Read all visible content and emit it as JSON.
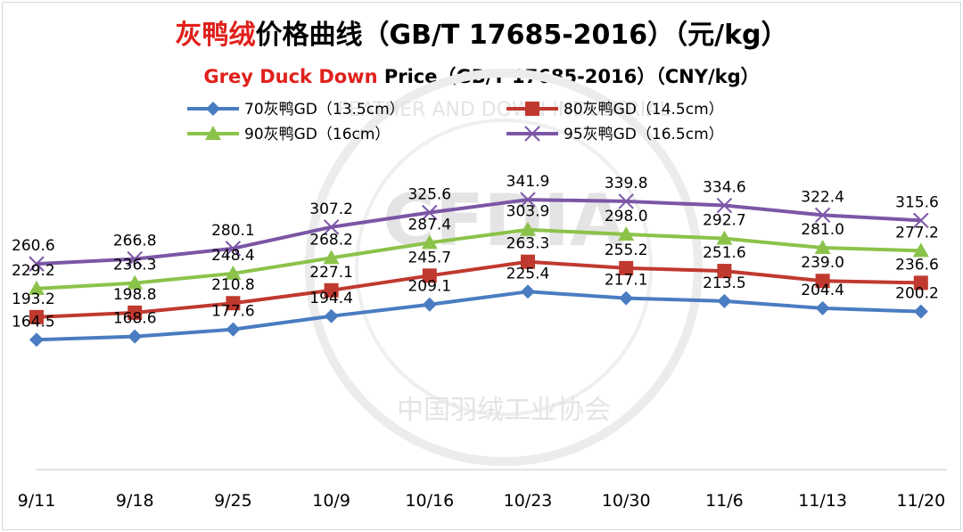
{
  "title": {
    "cn_red": "灰鸭绒",
    "cn_rest": "价格曲线（GB/T 17685-2016）（元/kg）",
    "en_red": "Grey Duck Down",
    "en_rest": " Price（GB/T 17685-2016）（CNY/kg）"
  },
  "watermark": {
    "text_cn": "中国羽绒工业协会",
    "text_en": "FEATHER AND DOWN INDUSTRIAL",
    "logo": "CFDIA"
  },
  "chart_data": {
    "type": "line",
    "categories": [
      "9/11",
      "9/18",
      "9/25",
      "10/9",
      "10/16",
      "10/23",
      "10/30",
      "11/6",
      "11/13",
      "11/20"
    ],
    "ylim": [
      0,
      400
    ],
    "grid": false,
    "legend_position": "top",
    "series": [
      {
        "name": "70灰鸭GD（13.5cm）",
        "color": "#4a7cc1",
        "marker": "diamond",
        "values": [
          164.5,
          168.6,
          177.6,
          194.4,
          209.1,
          225.4,
          217.1,
          213.5,
          204.4,
          200.2
        ]
      },
      {
        "name": "80灰鸭GD（14.5cm）",
        "color": "#c0392f",
        "marker": "square",
        "values": [
          193.2,
          198.8,
          210.8,
          227.1,
          245.7,
          263.3,
          255.2,
          251.6,
          239.0,
          236.6
        ]
      },
      {
        "name": "90灰鸭GD（16cm）",
        "color": "#8bc34a",
        "marker": "triangle",
        "values": [
          229.2,
          236.3,
          248.4,
          268.2,
          287.4,
          303.9,
          298.0,
          292.7,
          281.0,
          277.2
        ]
      },
      {
        "name": "95灰鸭GD（16.5cm）",
        "color": "#7b56a6",
        "marker": "x",
        "values": [
          260.6,
          266.8,
          280.1,
          307.2,
          325.6,
          341.9,
          339.8,
          334.6,
          322.4,
          315.6
        ]
      }
    ]
  }
}
